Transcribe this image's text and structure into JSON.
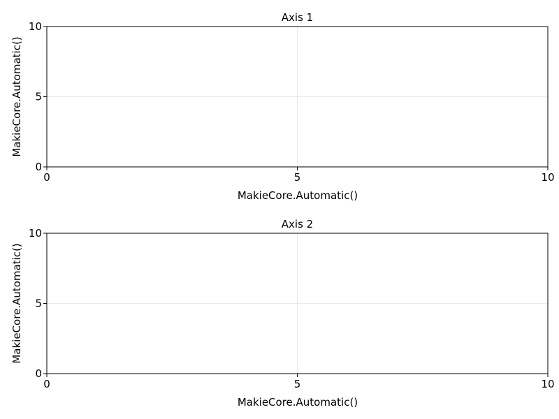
{
  "chart_data": [
    {
      "type": "line",
      "title": "Axis 1",
      "xlabel": "MakieCore.Automatic()",
      "ylabel": "MakieCore.Automatic()",
      "xlim": [
        0,
        10
      ],
      "ylim": [
        0,
        10
      ],
      "xticks": [
        0,
        5,
        10
      ],
      "yticks": [
        0,
        5,
        10
      ],
      "grid": true,
      "series": []
    },
    {
      "type": "line",
      "title": "Axis 2",
      "xlabel": "MakieCore.Automatic()",
      "ylabel": "MakieCore.Automatic()",
      "xlim": [
        0,
        10
      ],
      "ylim": [
        0,
        10
      ],
      "xticks": [
        0,
        5,
        10
      ],
      "yticks": [
        0,
        5,
        10
      ],
      "grid": true,
      "series": []
    }
  ]
}
